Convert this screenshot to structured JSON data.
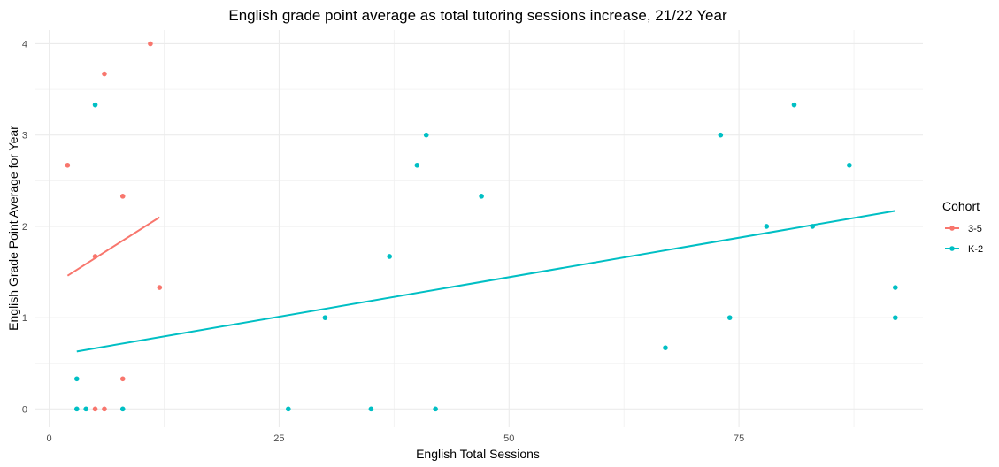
{
  "chart_data": {
    "type": "scatter",
    "title": "English grade point average as total tutoring sessions increase, 21/22 Year",
    "xlabel": "English Total Sessions",
    "ylabel": "English Grade Point Average for Year",
    "xlim": [
      -1.5,
      95
    ],
    "ylim": [
      -0.2,
      4.15
    ],
    "x_ticks": [
      0,
      25,
      50,
      75
    ],
    "y_ticks": [
      0,
      1,
      2,
      3,
      4
    ],
    "x_tick_labels": [
      "0",
      "25",
      "50",
      "75"
    ],
    "y_tick_labels": [
      "0",
      "1",
      "2",
      "3",
      "4"
    ],
    "grid": true,
    "legend": {
      "title": "Cohort",
      "position": "right"
    },
    "series": [
      {
        "name": "3-5",
        "color": "#F8766D",
        "points": [
          {
            "x": 2,
            "y": 2.67
          },
          {
            "x": 5,
            "y": 1.67
          },
          {
            "x": 5,
            "y": 0
          },
          {
            "x": 6,
            "y": 3.67
          },
          {
            "x": 6,
            "y": 0
          },
          {
            "x": 8,
            "y": 2.33
          },
          {
            "x": 8,
            "y": 0.33
          },
          {
            "x": 11,
            "y": 4
          },
          {
            "x": 12,
            "y": 1.33
          }
        ],
        "trend": {
          "x1": 2,
          "y1": 1.46,
          "x2": 12,
          "y2": 2.1
        }
      },
      {
        "name": "K-2",
        "color": "#00BFC4",
        "points": [
          {
            "x": 3,
            "y": 0.33
          },
          {
            "x": 3,
            "y": 0
          },
          {
            "x": 4,
            "y": 0
          },
          {
            "x": 5,
            "y": 3.33
          },
          {
            "x": 8,
            "y": 0
          },
          {
            "x": 26,
            "y": 0
          },
          {
            "x": 30,
            "y": 1
          },
          {
            "x": 35,
            "y": 0
          },
          {
            "x": 37,
            "y": 1.67
          },
          {
            "x": 40,
            "y": 2.67
          },
          {
            "x": 41,
            "y": 3
          },
          {
            "x": 42,
            "y": 0
          },
          {
            "x": 47,
            "y": 2.33
          },
          {
            "x": 67,
            "y": 0.67
          },
          {
            "x": 73,
            "y": 3
          },
          {
            "x": 74,
            "y": 1
          },
          {
            "x": 78,
            "y": 2
          },
          {
            "x": 81,
            "y": 3.33
          },
          {
            "x": 83,
            "y": 2
          },
          {
            "x": 87,
            "y": 2.67
          },
          {
            "x": 92,
            "y": 1.33
          },
          {
            "x": 92,
            "y": 1
          }
        ],
        "trend": {
          "x1": 3,
          "y1": 0.63,
          "x2": 92,
          "y2": 2.17
        }
      }
    ]
  }
}
